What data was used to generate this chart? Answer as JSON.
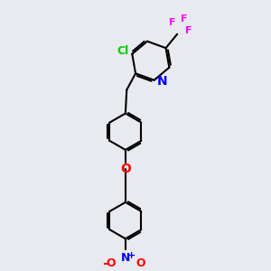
{
  "bg_color": "#e8eaf0",
  "bond_color": "#000000",
  "bond_width": 1.5,
  "cl_color": "#00cc00",
  "n_color": "#0000ff",
  "o_color": "#ff0000",
  "f_color": "#ff00ff",
  "font_size": 9,
  "figsize": [
    3.0,
    3.0
  ],
  "dpi": 100,
  "xlim": [
    0,
    10
  ],
  "ylim": [
    0,
    10
  ]
}
